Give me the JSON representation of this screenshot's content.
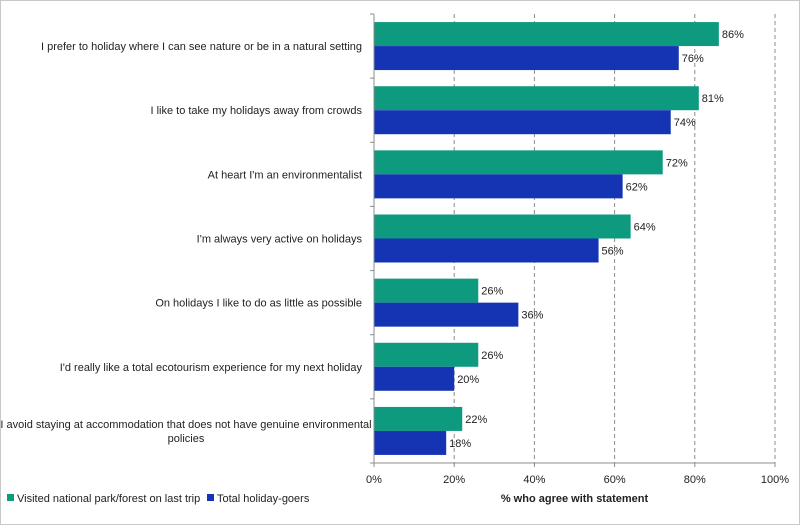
{
  "chart_data": {
    "type": "bar",
    "orientation": "horizontal",
    "categories": [
      "I prefer to holiday where I can see nature or be in a natural setting",
      "I like to take my holidays away from crowds",
      "At heart I'm an environmentalist",
      "I'm always very active on holidays",
      "On holidays I like to do as little as possible",
      "I'd really like a total ecotourism experience for my next holiday",
      "I avoid staying at accommodation that does not have genuine environmental policies"
    ],
    "category_lines": [
      [
        "I prefer to holiday where I can see nature or be in a natural setting"
      ],
      [
        "I like to take my holidays away from crowds"
      ],
      [
        "At heart I'm an environmentalist"
      ],
      [
        "I'm always very active on holidays"
      ],
      [
        "On holidays I like to do as little as possible"
      ],
      [
        "I'd really like a total ecotourism experience for my next holiday"
      ],
      [
        "I avoid staying at accommodation that does not have genuine environmental",
        "policies"
      ]
    ],
    "series": [
      {
        "name": "Visited national park/forest on last trip",
        "color": "#0e9a7e",
        "values": [
          86,
          81,
          72,
          64,
          26,
          26,
          22
        ],
        "labels": [
          "86%",
          "81%",
          "72%",
          "64%",
          "26%",
          "26%",
          "22%"
        ]
      },
      {
        "name": "Total holiday-goers",
        "color": "#1434b4",
        "values": [
          76,
          74,
          62,
          56,
          36,
          20,
          18
        ],
        "labels": [
          "76%",
          "74%",
          "62%",
          "56%",
          "36%",
          "20%",
          "18%"
        ]
      }
    ],
    "xlim": [
      0,
      100
    ],
    "xticks": [
      0,
      20,
      40,
      60,
      80,
      100
    ],
    "xtick_labels": [
      "0%",
      "20%",
      "40%",
      "60%",
      "80%",
      "100%"
    ],
    "xlabel": "% who agree with statement",
    "ylabel": "",
    "title": "",
    "grid": "vertical dashed",
    "legend_position": "bottom-left"
  }
}
